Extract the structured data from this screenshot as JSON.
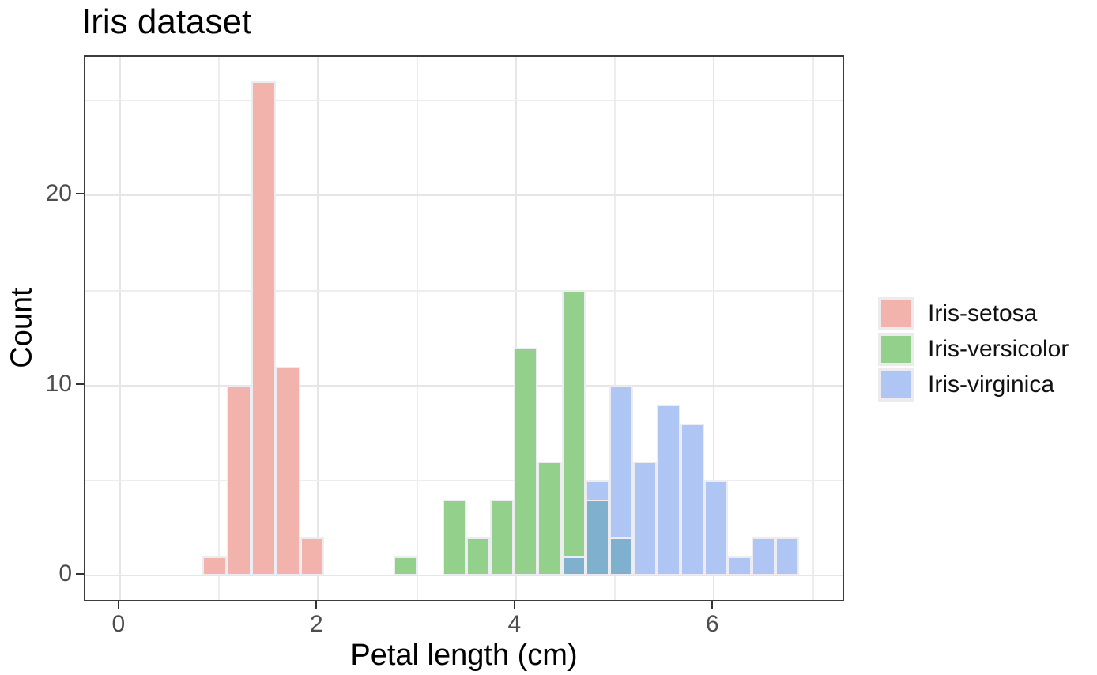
{
  "title": "Iris dataset",
  "x_axis": {
    "label": "Petal length (cm)",
    "ticks": [
      0,
      2,
      4,
      6
    ],
    "tick_labels": [
      "0",
      "2",
      "4",
      "6"
    ],
    "gridlines": [
      0,
      1,
      2,
      3,
      4,
      5,
      6,
      7
    ],
    "range": [
      -0.35,
      7.33
    ]
  },
  "y_axis": {
    "label": "Count",
    "ticks": [
      0,
      10,
      20
    ],
    "tick_labels": [
      "0",
      "10",
      "20"
    ],
    "gridlines": [
      0,
      5,
      10,
      15,
      20,
      25
    ],
    "range": [
      -1.45,
      27.3
    ]
  },
  "legend": {
    "items": [
      {
        "label": "Iris-setosa",
        "color": "#F1B3AC"
      },
      {
        "label": "Iris-versicolor",
        "color": "#93D08C"
      },
      {
        "label": "Iris-virginica",
        "color": "#AFC6F5"
      }
    ]
  },
  "colors": {
    "setosa": "#F1B3AC",
    "versicolor": "#93D08C",
    "virginica": "#AFC6F5",
    "overlap": "#7FB0CE",
    "bar_edge": "#ECECF2",
    "grid_major": "#E6E6E9",
    "grid_minor": "#EDEDF0",
    "panel_border": "#3C3C3C",
    "tick": "#333333",
    "tick_text": "#4D4D4D"
  },
  "chart_data": {
    "type": "bar",
    "subtype": "overlaid-histogram",
    "title": "Iris dataset",
    "xlabel": "Petal length (cm)",
    "ylabel": "Count",
    "xlim": [
      -0.35,
      7.33
    ],
    "ylim": [
      -1.45,
      27.3
    ],
    "bin_width": 0.24,
    "grid": true,
    "legend_position": "right",
    "series": [
      {
        "name": "Iris-virginica",
        "color": "#AFC6F5",
        "bars": [
          {
            "x0": 4.46,
            "x1": 4.7,
            "count": 1
          },
          {
            "x0": 4.7,
            "x1": 4.94,
            "count": 5
          },
          {
            "x0": 4.94,
            "x1": 5.18,
            "count": 10
          },
          {
            "x0": 5.18,
            "x1": 5.42,
            "count": 6
          },
          {
            "x0": 5.42,
            "x1": 5.66,
            "count": 9
          },
          {
            "x0": 5.66,
            "x1": 5.9,
            "count": 8
          },
          {
            "x0": 5.9,
            "x1": 6.14,
            "count": 5
          },
          {
            "x0": 6.14,
            "x1": 6.38,
            "count": 1
          },
          {
            "x0": 6.38,
            "x1": 6.62,
            "count": 2
          },
          {
            "x0": 6.62,
            "x1": 6.86,
            "count": 2
          }
        ]
      },
      {
        "name": "Iris-versicolor",
        "color": "#93D08C",
        "bars": [
          {
            "x0": 2.76,
            "x1": 3.0,
            "count": 1
          },
          {
            "x0": 3.26,
            "x1": 3.5,
            "count": 4
          },
          {
            "x0": 3.5,
            "x1": 3.74,
            "count": 2
          },
          {
            "x0": 3.74,
            "x1": 3.98,
            "count": 4
          },
          {
            "x0": 3.98,
            "x1": 4.22,
            "count": 12
          },
          {
            "x0": 4.22,
            "x1": 4.46,
            "count": 6
          },
          {
            "x0": 4.46,
            "x1": 4.7,
            "count": 15
          },
          {
            "x0": 4.7,
            "x1": 4.94,
            "count": 4
          },
          {
            "x0": 4.94,
            "x1": 5.18,
            "count": 2
          }
        ]
      },
      {
        "name": "Iris-setosa",
        "color": "#F1B3AC",
        "bars": [
          {
            "x0": 0.83,
            "x1": 1.08,
            "count": 1
          },
          {
            "x0": 1.08,
            "x1": 1.33,
            "count": 10
          },
          {
            "x0": 1.33,
            "x1": 1.57,
            "count": 26
          },
          {
            "x0": 1.57,
            "x1": 1.82,
            "count": 11
          },
          {
            "x0": 1.82,
            "x1": 2.06,
            "count": 2
          }
        ]
      }
    ],
    "overlap_segments": [
      {
        "x0": 4.46,
        "x1": 4.7,
        "count": 1
      },
      {
        "x0": 4.7,
        "x1": 4.94,
        "count": 4
      },
      {
        "x0": 4.94,
        "x1": 5.18,
        "count": 2
      }
    ],
    "overlap_color": "#7FB0CE"
  }
}
